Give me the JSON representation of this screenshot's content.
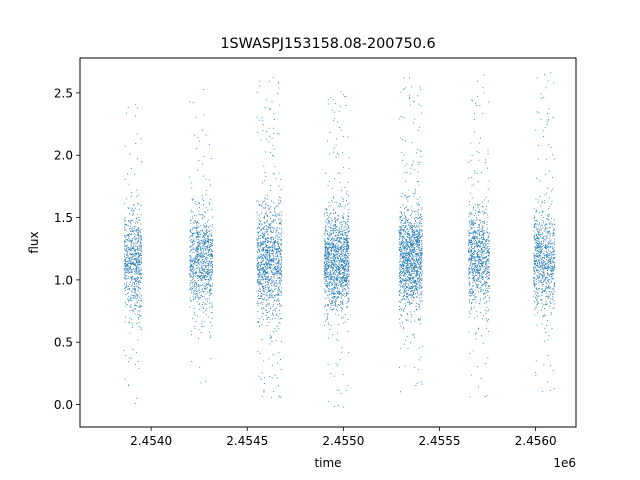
{
  "chart_data": {
    "type": "scatter",
    "title": "1SWASPJ153158.08-200750.6",
    "xlabel": "time",
    "ylabel": "flux",
    "x_offset_label": "1e6",
    "xlim": [
      2.45363,
      2.45621
    ],
    "ylim": [
      -0.18,
      2.78
    ],
    "x_ticks": [
      2.454,
      2.4545,
      2.455,
      2.4555,
      2.456
    ],
    "x_tick_labels": [
      "2.4540",
      "2.4545",
      "2.4550",
      "2.4555",
      "2.4560"
    ],
    "y_ticks": [
      0.0,
      0.5,
      1.0,
      1.5,
      2.0,
      2.5
    ],
    "y_tick_labels": [
      "0.0",
      "0.5",
      "1.0",
      "1.5",
      "2.0",
      "2.5"
    ],
    "grid": false,
    "legend": "none",
    "point_color": "#1f77b4",
    "series": [
      {
        "clusters": [
          {
            "x_start": 2.45386,
            "x_end": 2.45395,
            "median_flux": 1.15,
            "spread": 0.2,
            "min_flux": -0.05,
            "max_flux": 2.52,
            "count": 700
          },
          {
            "x_start": 2.4542,
            "x_end": 2.45432,
            "median_flux": 1.15,
            "spread": 0.2,
            "min_flux": 0.1,
            "max_flux": 2.65,
            "count": 850
          },
          {
            "x_start": 2.45455,
            "x_end": 2.45468,
            "median_flux": 1.15,
            "spread": 0.22,
            "min_flux": 0.02,
            "max_flux": 2.68,
            "count": 1100
          },
          {
            "x_start": 2.4549,
            "x_end": 2.45503,
            "median_flux": 1.15,
            "spread": 0.2,
            "min_flux": -0.02,
            "max_flux": 2.52,
            "count": 1300
          },
          {
            "x_start": 2.45529,
            "x_end": 2.45541,
            "median_flux": 1.18,
            "spread": 0.2,
            "min_flux": 0.1,
            "max_flux": 2.65,
            "count": 1300
          },
          {
            "x_start": 2.45565,
            "x_end": 2.45576,
            "median_flux": 1.18,
            "spread": 0.2,
            "min_flux": 0.05,
            "max_flux": 2.65,
            "count": 850
          },
          {
            "x_start": 2.45599,
            "x_end": 2.4561,
            "median_flux": 1.15,
            "spread": 0.2,
            "min_flux": 0.05,
            "max_flux": 2.68,
            "count": 800
          }
        ]
      }
    ]
  }
}
